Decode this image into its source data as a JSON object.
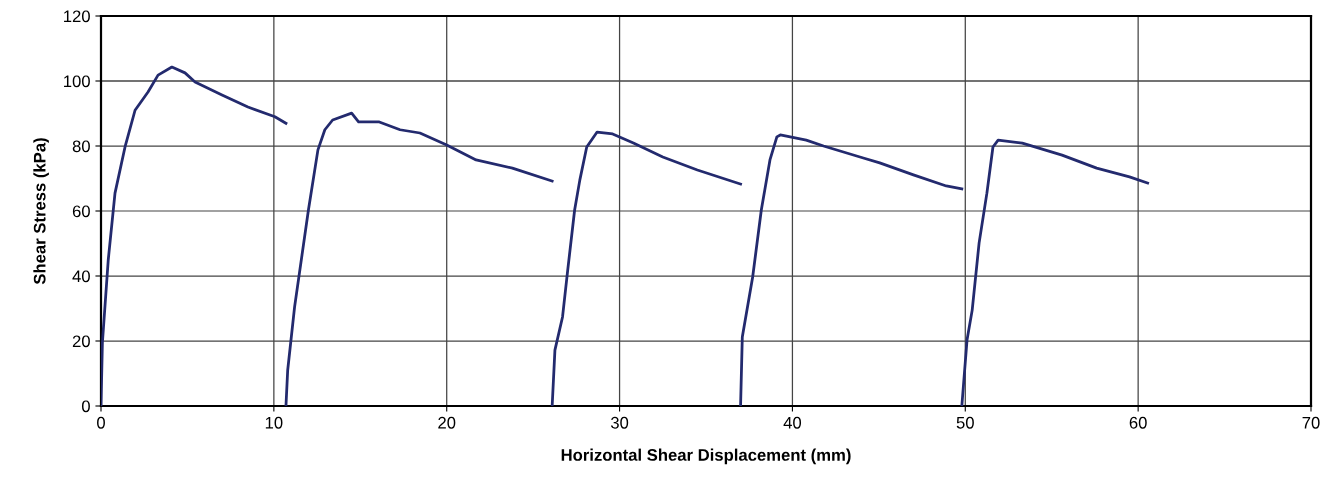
{
  "chart_data": {
    "type": "line",
    "xlabel": "Horizontal Shear Displacement (mm)",
    "ylabel": "Shear Stress (kPa)",
    "xlim": [
      0,
      70
    ],
    "xticks": [
      0,
      10,
      20,
      30,
      40,
      50,
      60,
      70
    ],
    "ylim": [
      0,
      120
    ],
    "yticks": [
      0,
      20,
      40,
      60,
      80,
      100,
      120
    ],
    "grid": true,
    "legend": false,
    "marker": "none",
    "line_style": "solid",
    "series": [
      {
        "color": "#232a6e",
        "x": [
          0,
          0.08,
          0.42,
          0.81,
          1.39,
          1.97,
          2.72,
          3.3,
          4.1,
          4.86,
          5.44,
          7.0,
          8.5,
          10.06,
          10.7
        ],
        "values": [
          0,
          19.4,
          45,
          65.5,
          79.7,
          91,
          96.6,
          101.8,
          104.3,
          102.5,
          99.7,
          95.7,
          92,
          89,
          87
        ]
      },
      {
        "color": "#232a6e",
        "x": [
          10.7,
          10.8,
          11.2,
          12.0,
          12.55,
          12.95,
          13.4,
          14.5,
          14.9,
          16.1,
          17.3,
          18.45,
          20.0,
          21.7,
          23.8,
          26.1
        ],
        "values": [
          0,
          11,
          30.5,
          60.3,
          78.8,
          85,
          88,
          90.1,
          87.4,
          87.4,
          85,
          84,
          80.3,
          75.7,
          73.2,
          69.2
        ]
      },
      {
        "color": "#232a6e",
        "x": [
          26.1,
          26.26,
          26.7,
          27.0,
          27.4,
          27.7,
          28.1,
          28.7,
          29.6,
          30.8,
          32.5,
          34.5,
          37.0
        ],
        "values": [
          0,
          17.2,
          27.4,
          41.8,
          60.3,
          69.5,
          79.7,
          84.3,
          83.7,
          80.9,
          76.6,
          72.6,
          68.3
        ]
      },
      {
        "color": "#232a6e",
        "x": [
          37.0,
          37.1,
          37.7,
          38.2,
          38.7,
          39.1,
          39.3,
          40.8,
          41.8,
          44.1,
          45.05,
          47.0,
          48.9,
          49.8
        ],
        "values": [
          0,
          21.2,
          39.7,
          60.3,
          75.7,
          82.8,
          83.4,
          81.8,
          80,
          76.3,
          74.8,
          71.1,
          67.7,
          66.8
        ]
      },
      {
        "color": "#232a6e",
        "x": [
          49.8,
          50.1,
          50.4,
          50.8,
          51.25,
          51.6,
          51.9,
          53.3,
          55.6,
          57.6,
          59.5,
          60.55
        ],
        "values": [
          0,
          20.3,
          29.5,
          50.2,
          65.5,
          79.7,
          81.8,
          80.9,
          77.2,
          73.2,
          70.5,
          68.6
        ]
      }
    ]
  }
}
